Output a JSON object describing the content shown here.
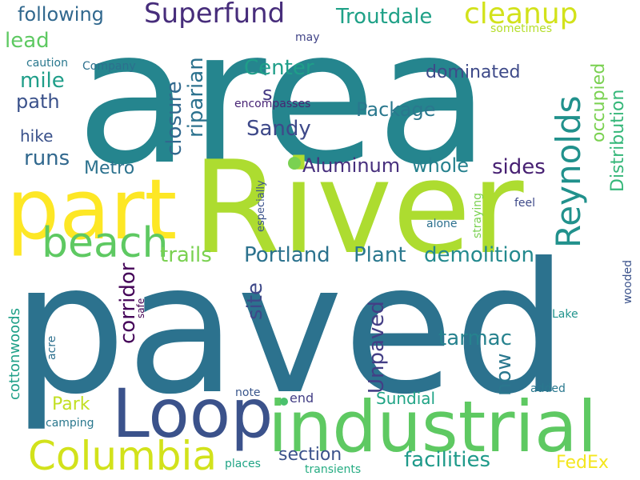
{
  "words": [
    {
      "text": "area",
      "color": "#25858e"
    },
    {
      "text": "paved",
      "color": "#2c728e"
    },
    {
      "text": "River",
      "color": "#addc30"
    },
    {
      "text": "part",
      "color": "#fde725"
    },
    {
      "text": "industrial",
      "color": "#5ec962"
    },
    {
      "text": "Loop",
      "color": "#3b528b"
    },
    {
      "text": "Columbia",
      "color": "#d2e21b"
    },
    {
      "text": "beach",
      "color": "#5ec962"
    },
    {
      "text": "Reynolds",
      "color": "#21918c"
    },
    {
      "text": "Superfund",
      "color": "#472d7b"
    },
    {
      "text": "cleanup",
      "color": "#d2e21b"
    },
    {
      "text": "following",
      "color": "#31688e"
    },
    {
      "text": "Troutdale",
      "color": "#1fa187"
    },
    {
      "text": "lead",
      "color": "#5ec962"
    },
    {
      "text": "riparian",
      "color": "#2c728e"
    },
    {
      "text": "closure",
      "color": "#31688e"
    },
    {
      "text": "Center",
      "color": "#1f9e89"
    },
    {
      "text": "s",
      "color": "#443983"
    },
    {
      "text": "mile",
      "color": "#1f9e89"
    },
    {
      "text": "path",
      "color": "#3b528b"
    },
    {
      "text": "Package",
      "color": "#2a788e"
    },
    {
      "text": "dominated",
      "color": "#3e4a89"
    },
    {
      "text": "occupied",
      "color": "#7ad151"
    },
    {
      "text": "Distribution",
      "color": "#35b779"
    },
    {
      "text": "Sandy",
      "color": "#3e4989"
    },
    {
      "text": "hike",
      "color": "#3b528b"
    },
    {
      "text": "runs",
      "color": "#31688e"
    },
    {
      "text": "Metro",
      "color": "#2c728e"
    },
    {
      "text": "Aluminum",
      "color": "#472f7d"
    },
    {
      "text": "whole",
      "color": "#26818e"
    },
    {
      "text": "sides",
      "color": "#482173"
    },
    {
      "text": "trails",
      "color": "#7ad151"
    },
    {
      "text": "Portland",
      "color": "#2c728e"
    },
    {
      "text": "Plant",
      "color": "#2a788e"
    },
    {
      "text": "demolition",
      "color": "#23898e"
    },
    {
      "text": "corridor",
      "color": "#450559"
    },
    {
      "text": "site",
      "color": "#3e4989"
    },
    {
      "text": "Unpaved",
      "color": "#433e85"
    },
    {
      "text": "tarmac",
      "color": "#26828e"
    },
    {
      "text": "now",
      "color": "#2a778e"
    },
    {
      "text": "Park",
      "color": "#c2df23"
    },
    {
      "text": "Sundial",
      "color": "#20a486"
    },
    {
      "text": "section",
      "color": "#3b528b"
    },
    {
      "text": "facilities",
      "color": "#1f9a8a"
    },
    {
      "text": "FedEx",
      "color": "#f4e61e"
    },
    {
      "text": "cottonwoods",
      "color": "#1fa088"
    },
    {
      "text": "Company",
      "color": "#2d708e"
    },
    {
      "text": "caution",
      "color": "#2a788e"
    },
    {
      "text": "may",
      "color": "#414487"
    },
    {
      "text": "sometimes",
      "color": "#b5de2b"
    },
    {
      "text": "encompasses",
      "color": "#482475"
    },
    {
      "text": "especially",
      "color": "#3b528b"
    },
    {
      "text": "straying",
      "color": "#7ad151"
    },
    {
      "text": "alone",
      "color": "#2d708e"
    },
    {
      "text": "feel",
      "color": "#3e4a89"
    },
    {
      "text": "safe",
      "color": "#440154"
    },
    {
      "text": "acre",
      "color": "#2d708e"
    },
    {
      "text": "Lake",
      "color": "#20938c"
    },
    {
      "text": "wooded",
      "color": "#3b528b"
    },
    {
      "text": "note",
      "color": "#39568c"
    },
    {
      "text": "end",
      "color": "#433e85"
    },
    {
      "text": "added",
      "color": "#2a788e"
    },
    {
      "text": "camping",
      "color": "#2a788e"
    },
    {
      "text": "places",
      "color": "#20a486"
    },
    {
      "text": "transients",
      "color": "#25ac82"
    }
  ],
  "dots": [
    {
      "color": "#7ad151"
    },
    {
      "color": "#4ac16d"
    }
  ]
}
